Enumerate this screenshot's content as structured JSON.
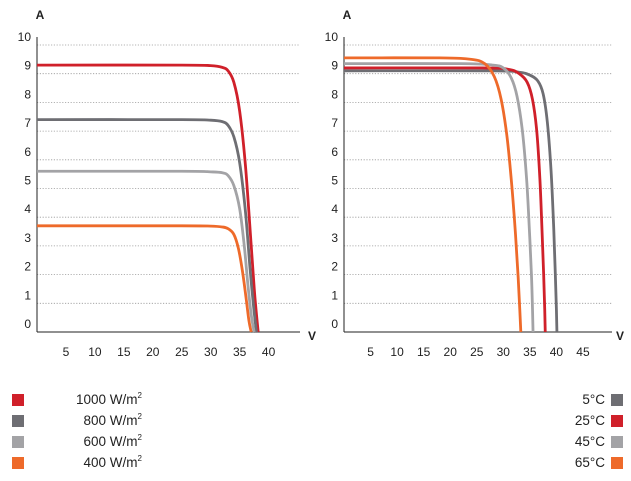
{
  "chart_data": [
    {
      "type": "line",
      "xlabel": "V",
      "ylabel": "A",
      "xlim": [
        0,
        40
      ],
      "ylim": [
        0,
        10
      ],
      "x_ticks": [
        "5",
        "10",
        "15",
        "20",
        "25",
        "30",
        "35",
        "40"
      ],
      "y_ticks": [
        "0",
        "1",
        "2",
        "3",
        "4",
        "5",
        "6",
        "7",
        "8",
        "9",
        "10"
      ],
      "grid": "horizontal dotted",
      "legend_position": "bottom-left",
      "series": [
        {
          "name": "1000 W/m²",
          "color": "#d0202a",
          "x": [
            0,
            25,
            30,
            32,
            33,
            34,
            35,
            36,
            37,
            37.6,
            38.2
          ],
          "y": [
            9.3,
            9.3,
            9.28,
            9.22,
            9.1,
            8.7,
            7.7,
            5.8,
            3.0,
            1.3,
            0
          ]
        },
        {
          "name": "800 W/m²",
          "color": "#6e6e73",
          "x": [
            0,
            25,
            30,
            32,
            33,
            34,
            35,
            36,
            36.8,
            37.4,
            37.9
          ],
          "y": [
            7.4,
            7.4,
            7.38,
            7.33,
            7.2,
            6.8,
            5.9,
            4.2,
            2.2,
            0.9,
            0
          ]
        },
        {
          "name": "600 W/m²",
          "color": "#a3a3a6",
          "x": [
            0,
            25,
            30,
            32,
            33,
            34,
            35,
            35.8,
            36.4,
            37.0,
            37.5
          ],
          "y": [
            5.6,
            5.6,
            5.58,
            5.55,
            5.45,
            5.1,
            4.3,
            3.0,
            1.7,
            0.6,
            0
          ]
        },
        {
          "name": "400 W/m²",
          "color": "#ee6a2a",
          "x": [
            0,
            25,
            30,
            32,
            33,
            34,
            34.8,
            35.5,
            36.1,
            36.6,
            37.0
          ],
          "y": [
            3.7,
            3.7,
            3.69,
            3.66,
            3.6,
            3.4,
            2.9,
            2.1,
            1.2,
            0.4,
            0
          ]
        }
      ],
      "legend": [
        {
          "label": "1000 W/m",
          "sup": "2",
          "color": "#d0202a"
        },
        {
          "label": "800 W/m",
          "sup": "2",
          "color": "#6e6e73"
        },
        {
          "label": "600 W/m",
          "sup": "2",
          "color": "#a3a3a6"
        },
        {
          "label": "400 W/m",
          "sup": "2",
          "color": "#ee6a2a"
        }
      ]
    },
    {
      "type": "line",
      "xlabel": "V",
      "ylabel": "A",
      "xlim": [
        0,
        45
      ],
      "ylim": [
        0,
        10
      ],
      "x_ticks": [
        "5",
        "10",
        "15",
        "20",
        "25",
        "30",
        "35",
        "40",
        "45"
      ],
      "y_ticks": [
        "0",
        "1",
        "2",
        "3",
        "4",
        "5",
        "6",
        "7",
        "8",
        "9",
        "10"
      ],
      "grid": "horizontal dotted",
      "legend_position": "bottom-right",
      "series": [
        {
          "name": "5°C",
          "color": "#6e6e73",
          "x": [
            0,
            28,
            33,
            35,
            36.5,
            37.5,
            38.3,
            39.0,
            39.5,
            39.8,
            40.0,
            40.1
          ],
          "y": [
            9.1,
            9.1,
            9.05,
            8.95,
            8.75,
            8.3,
            7.3,
            5.6,
            3.6,
            2.0,
            0.8,
            0
          ]
        },
        {
          "name": "25°C",
          "color": "#d0202a",
          "x": [
            0,
            26,
            31,
            33,
            34.5,
            35.5,
            36.3,
            36.9,
            37.3,
            37.6,
            37.8,
            37.9
          ],
          "y": [
            9.2,
            9.2,
            9.15,
            9.0,
            8.7,
            8.1,
            7.0,
            5.3,
            3.5,
            2.0,
            0.8,
            0
          ]
        },
        {
          "name": "45°C",
          "color": "#a3a3a6",
          "x": [
            0,
            22,
            28,
            30,
            31.5,
            32.6,
            33.6,
            34.4,
            34.9,
            35.3,
            35.5,
            35.6
          ],
          "y": [
            9.35,
            9.35,
            9.3,
            9.2,
            8.85,
            8.2,
            7.0,
            5.3,
            3.6,
            2.0,
            0.8,
            0
          ]
        },
        {
          "name": "65°C",
          "color": "#ee6a2a",
          "x": [
            0,
            18,
            24,
            26.5,
            28.3,
            29.6,
            30.7,
            31.6,
            32.3,
            32.8,
            33.1,
            33.3
          ],
          "y": [
            9.55,
            9.55,
            9.5,
            9.35,
            8.9,
            8.1,
            6.8,
            5.1,
            3.4,
            1.9,
            0.8,
            0
          ]
        }
      ],
      "legend": [
        {
          "label": "5°C",
          "color": "#6e6e73"
        },
        {
          "label": "25°C",
          "color": "#d0202a"
        },
        {
          "label": "45°C",
          "color": "#a3a3a6"
        },
        {
          "label": "65°C",
          "color": "#ee6a2a"
        }
      ]
    }
  ]
}
